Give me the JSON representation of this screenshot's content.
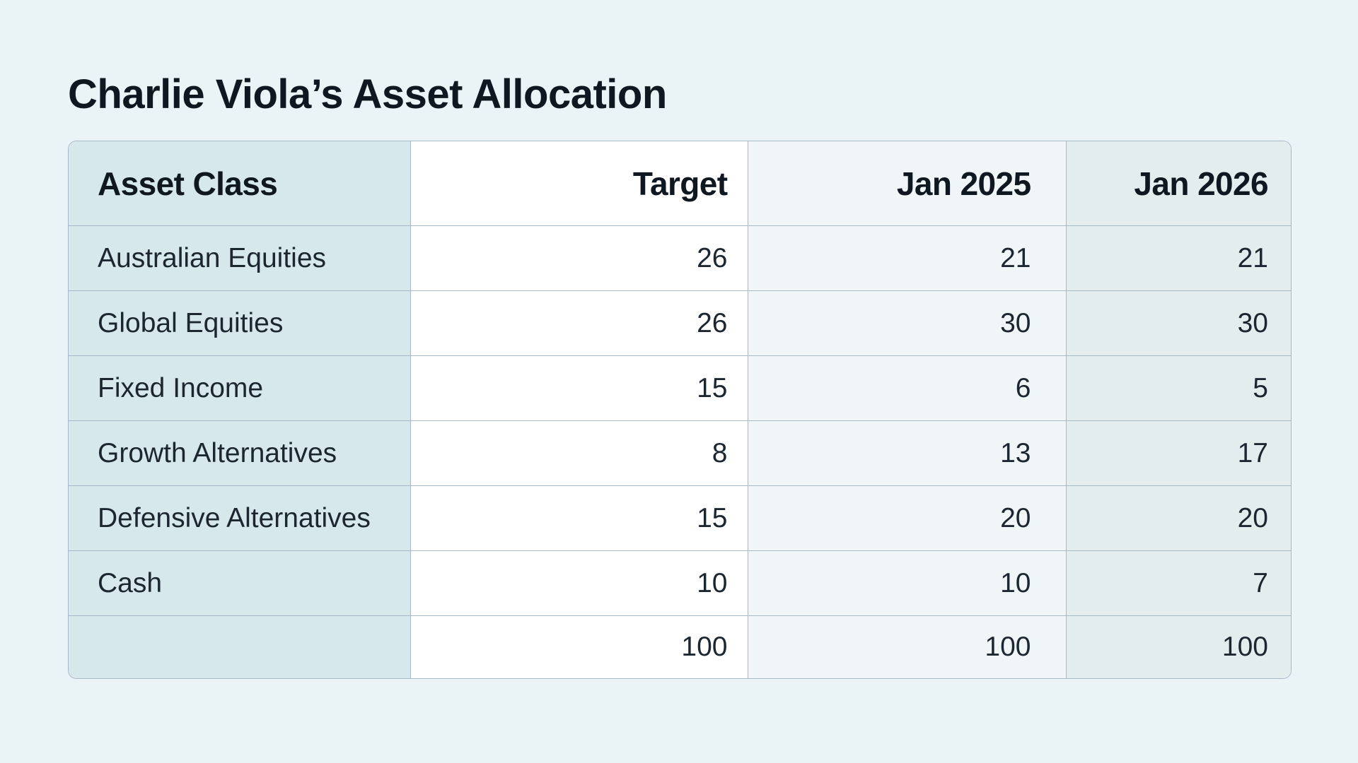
{
  "title": "Charlie Viola’s Asset Allocation",
  "table": {
    "headers": [
      "Asset Class",
      "Target",
      "Jan 2025",
      "Jan 2026"
    ],
    "rows": [
      [
        "Australian Equities",
        "26",
        "21",
        "21"
      ],
      [
        "Global Equities",
        "26",
        "30",
        "30"
      ],
      [
        "Fixed Income",
        "15",
        "6",
        "5"
      ],
      [
        "Growth Alternatives",
        "8",
        "13",
        "17"
      ],
      [
        "Defensive Alternatives",
        "15",
        "20",
        "20"
      ],
      [
        "Cash",
        "10",
        "10",
        "7"
      ],
      [
        "",
        "100",
        "100",
        "100"
      ]
    ]
  },
  "colors": {
    "background": "#eaf3f5",
    "label_column": "#d6e8ec",
    "target_column": "#ffffff",
    "jan2025_column": "#f0f6f7",
    "jan2026_column": "#e4edee",
    "grid": "#a8b8c6"
  }
}
